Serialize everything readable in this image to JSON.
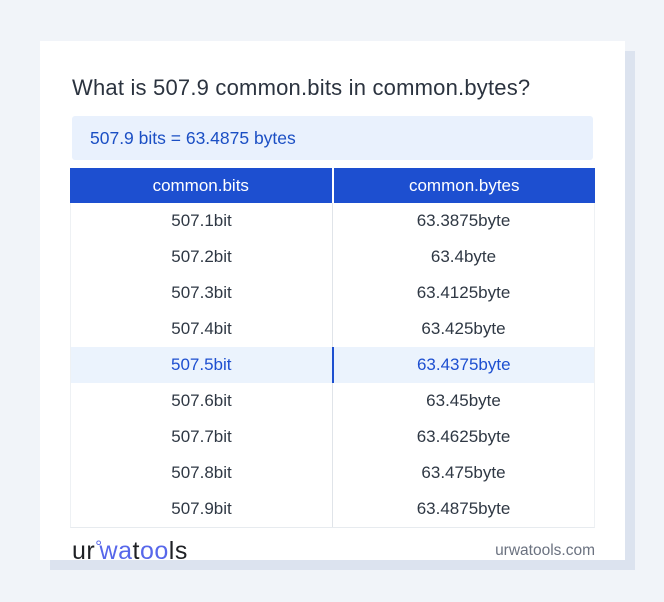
{
  "page": {
    "title": "What is 507.9 common.bits in common.bytes?",
    "result_text": "507.9 bits = 63.4875 bytes"
  },
  "table": {
    "columns": [
      "common.bits",
      "common.bytes"
    ],
    "rows": [
      {
        "bits": "507.1bit",
        "bytes": "63.3875byte",
        "highlighted": false
      },
      {
        "bits": "507.2bit",
        "bytes": "63.4byte",
        "highlighted": false
      },
      {
        "bits": "507.3bit",
        "bytes": "63.4125byte",
        "highlighted": false
      },
      {
        "bits": "507.4bit",
        "bytes": "63.425byte",
        "highlighted": false
      },
      {
        "bits": "507.5bit",
        "bytes": "63.4375byte",
        "highlighted": true
      },
      {
        "bits": "507.6bit",
        "bytes": "63.45byte",
        "highlighted": false
      },
      {
        "bits": "507.7bit",
        "bytes": "63.4625byte",
        "highlighted": false
      },
      {
        "bits": "507.8bit",
        "bytes": "63.475byte",
        "highlighted": false
      },
      {
        "bits": "507.9bit",
        "bytes": "63.4875byte",
        "highlighted": false
      }
    ]
  },
  "footer": {
    "logo_segments": [
      {
        "text": "ur",
        "color": "#1f2125",
        "degree": false
      },
      {
        "text": "°",
        "color": "#5767ea",
        "degree": true
      },
      {
        "text": "wa",
        "color": "#5767ea",
        "degree": false
      },
      {
        "text": "t",
        "color": "#1f2125",
        "degree": false
      },
      {
        "text": "oo",
        "color": "#5767ea",
        "degree": false
      },
      {
        "text": "ls",
        "color": "#1f2125",
        "degree": false
      }
    ],
    "website": "urwatools.com"
  },
  "colors": {
    "page_bg": "#f1f4f9",
    "card_bg": "#ffffff",
    "card_shadow": "#dce3ef",
    "table_header_bg": "#1d4fd0",
    "table_header_text": "#ffffff",
    "result_box_bg": "#e9f1fd",
    "result_text": "#1b4fc4",
    "row_text": "#2f3844",
    "highlight_row_bg": "#ebf3fd",
    "highlight_row_text": "#1d4fd0",
    "title_text": "#2b333f",
    "website_text": "#6b7280",
    "logo_blue": "#5767ea"
  }
}
